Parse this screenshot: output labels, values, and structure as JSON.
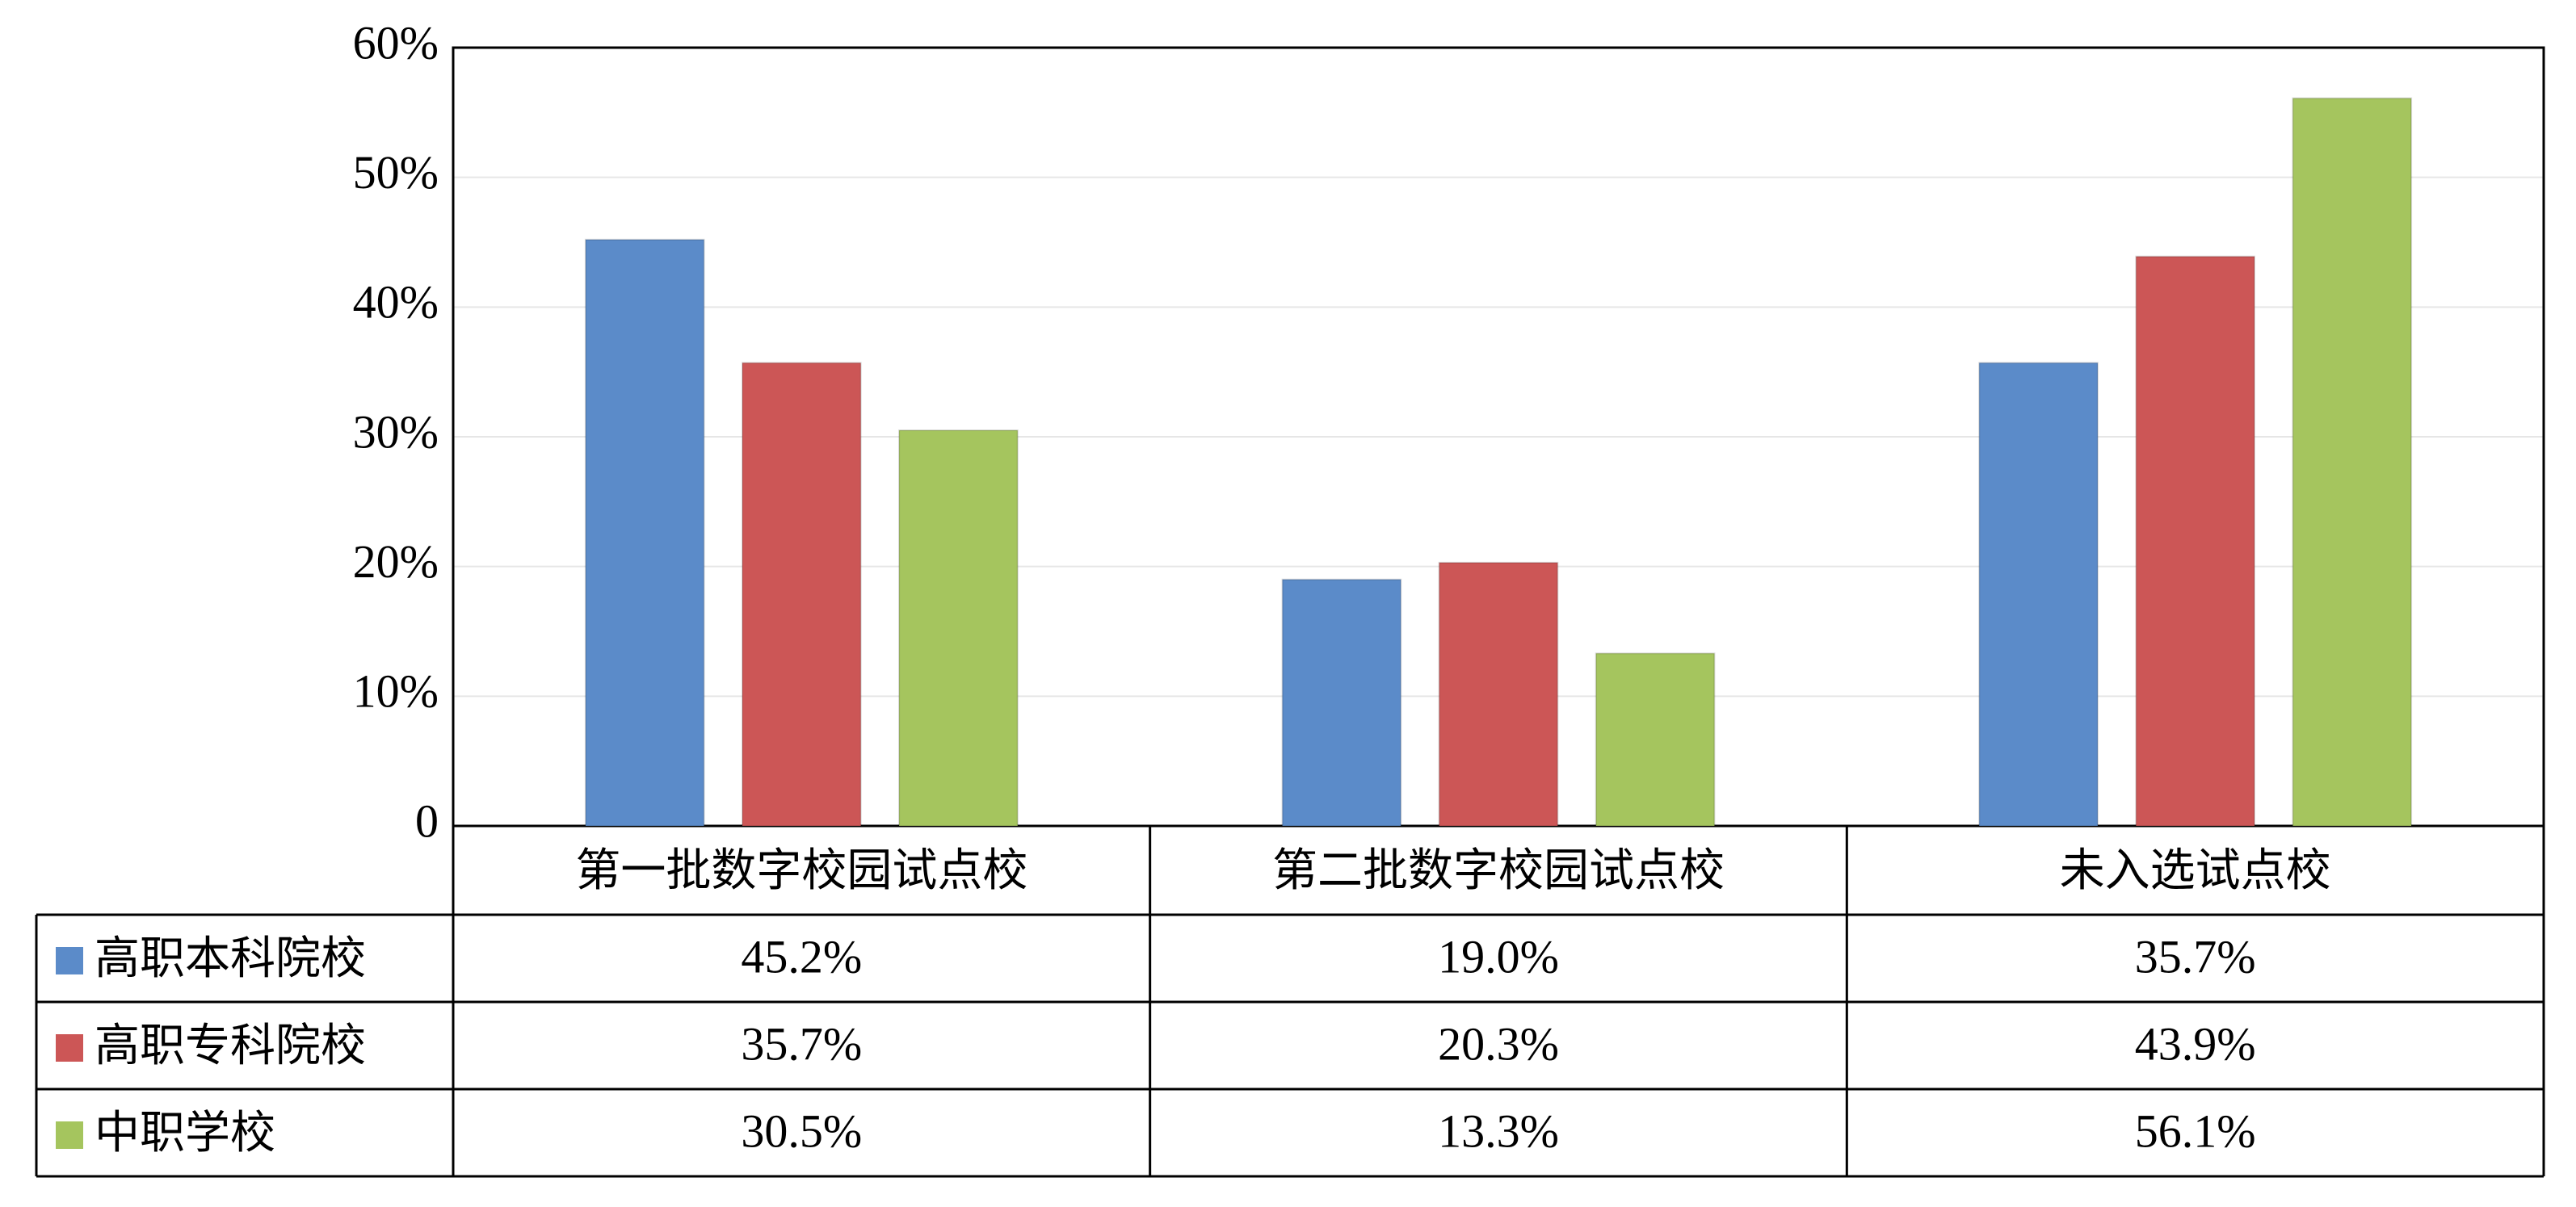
{
  "chart_data": {
    "type": "bar",
    "categories": [
      "第一批数字校园试点校",
      "第二批数字校园试点校",
      "未入选试点校"
    ],
    "series": [
      {
        "name": "高职本科院校",
        "color": "#5b8bc9",
        "values": [
          45.2,
          19.0,
          35.7
        ],
        "value_labels": [
          "45.2%",
          "19.0%",
          "35.7%"
        ]
      },
      {
        "name": "高职专科院校",
        "color": "#cc5656",
        "values": [
          35.7,
          20.3,
          43.9
        ],
        "value_labels": [
          "35.7%",
          "20.3%",
          "43.9%"
        ]
      },
      {
        "name": "中职学校",
        "color": "#a5c55e",
        "values": [
          30.5,
          13.3,
          56.1
        ],
        "value_labels": [
          "30.5%",
          "13.3%",
          "56.1%"
        ]
      }
    ],
    "ylim": [
      0,
      60
    ],
    "yticks": [
      0,
      {
        "value": 10,
        "label": "10%"
      },
      {
        "value": 20,
        "label": "20%"
      },
      {
        "value": 30,
        "label": "30%"
      },
      {
        "value": 40,
        "label": "40%"
      },
      {
        "value": 50,
        "label": "50%"
      },
      {
        "value": 60,
        "label": "60%"
      }
    ],
    "grid": true
  }
}
